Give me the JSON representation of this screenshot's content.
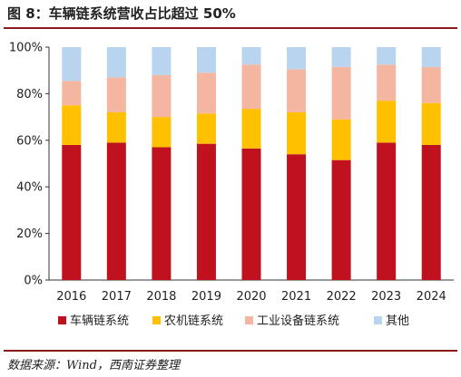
{
  "title": "图 8：车辆链系统营收占比超过 50%",
  "source": "数据来源：Wind，西南证券整理",
  "chart_data": {
    "type": "bar",
    "stacked": true,
    "categories": [
      "2016",
      "2017",
      "2018",
      "2019",
      "2020",
      "2021",
      "2022",
      "2023",
      "2024"
    ],
    "ylim": [
      0,
      100
    ],
    "yticks": [
      "0%",
      "20%",
      "40%",
      "60%",
      "80%",
      "100%"
    ],
    "legend_position": "bottom",
    "grid": false,
    "series": [
      {
        "name": "车辆链系统",
        "color": "#c0111f",
        "values": [
          58,
          59,
          57,
          58.5,
          56.5,
          54,
          51.5,
          59,
          58
        ]
      },
      {
        "name": "农机链系统",
        "color": "#ffc000",
        "values": [
          17,
          13,
          13,
          13,
          17,
          18,
          17.5,
          18,
          18
        ]
      },
      {
        "name": "工业设备链系统",
        "color": "#f4b6a0",
        "values": [
          10.5,
          15,
          18,
          17.5,
          19,
          18.5,
          22.5,
          15.5,
          15.5
        ]
      },
      {
        "name": "其他",
        "color": "#b8d4ee",
        "values": [
          14.5,
          13,
          12,
          11,
          7.5,
          9.5,
          8.5,
          7.5,
          8.5
        ]
      }
    ]
  }
}
